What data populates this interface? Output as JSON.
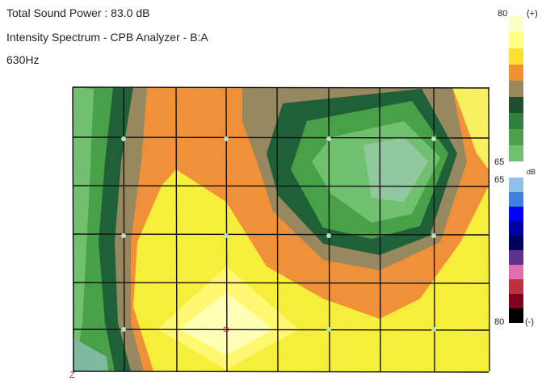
{
  "header": {
    "title": "Total Sound Power : 83.0 dB",
    "subtitle": "Intensity Spectrum - CPB Analyzer - B:A",
    "frequency": "630Hz"
  },
  "scale": {
    "top_max": 80,
    "top_sign": "(+)",
    "top_min": 65,
    "bottom_min": 65,
    "unit": "dB",
    "bottom_max": 80,
    "bottom_sign": "(-)"
  },
  "axis_label": "Z"
}
